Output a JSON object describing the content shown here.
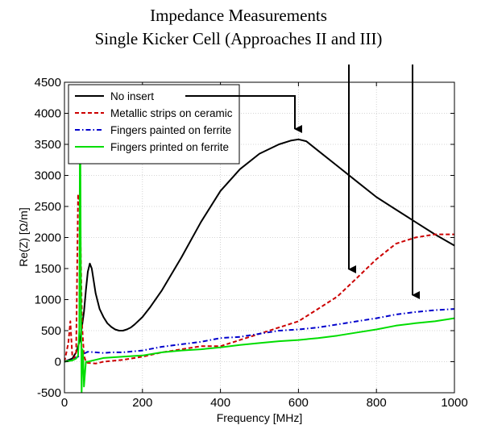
{
  "chart_data": {
    "type": "line",
    "title": "Impedance Measurements",
    "subtitle": "Single Kicker Cell (Approaches II and III)",
    "xlabel": "Frequency [MHz]",
    "ylabel": "Re(Z) [Ω/m]",
    "xlim": [
      0,
      1000
    ],
    "ylim": [
      -500,
      4500
    ],
    "xticks": [
      0,
      200,
      400,
      600,
      800,
      1000
    ],
    "yticks": [
      -500,
      0,
      500,
      1000,
      1500,
      2000,
      2500,
      3000,
      3500,
      4000,
      4500
    ],
    "grid": true,
    "legend_position": "top-left",
    "series": [
      {
        "name": "No insert",
        "color": "#000000",
        "style": "solid",
        "x": [
          0,
          20,
          30,
          40,
          50,
          55,
          60,
          65,
          70,
          75,
          80,
          90,
          100,
          110,
          120,
          130,
          140,
          150,
          160,
          170,
          180,
          200,
          220,
          250,
          300,
          350,
          400,
          450,
          500,
          550,
          580,
          600,
          620,
          650,
          700,
          750,
          800,
          850,
          900,
          950,
          1000
        ],
        "y": [
          0,
          50,
          150,
          350,
          800,
          1150,
          1450,
          1580,
          1500,
          1300,
          1100,
          850,
          720,
          620,
          560,
          520,
          500,
          500,
          520,
          550,
          600,
          720,
          880,
          1150,
          1680,
          2250,
          2750,
          3100,
          3350,
          3500,
          3560,
          3580,
          3550,
          3400,
          3150,
          2900,
          2650,
          2450,
          2250,
          2050,
          1870
        ]
      },
      {
        "name": "Metallic strips on ceramic",
        "color": "#cc0000",
        "style": "dashed",
        "x": [
          0,
          10,
          15,
          20,
          25,
          30,
          35,
          40,
          45,
          50,
          55,
          60,
          80,
          100,
          150,
          200,
          250,
          300,
          350,
          400,
          450,
          500,
          550,
          600,
          650,
          700,
          750,
          800,
          850,
          900,
          950,
          1000
        ],
        "y": [
          0,
          300,
          650,
          100,
          50,
          150,
          2700,
          2400,
          600,
          100,
          0,
          -20,
          -30,
          0,
          30,
          80,
          150,
          200,
          250,
          250,
          350,
          450,
          550,
          650,
          850,
          1050,
          1350,
          1650,
          1900,
          2000,
          2050,
          2050
        ]
      },
      {
        "name": "Fingers painted on ferrite",
        "color": "#0000cc",
        "style": "dashdot",
        "x": [
          0,
          20,
          40,
          60,
          80,
          100,
          120,
          150,
          200,
          250,
          300,
          350,
          400,
          450,
          500,
          550,
          600,
          650,
          700,
          750,
          800,
          850,
          900,
          950,
          1000
        ],
        "y": [
          0,
          30,
          100,
          160,
          150,
          140,
          150,
          150,
          180,
          240,
          280,
          320,
          380,
          400,
          450,
          500,
          520,
          550,
          600,
          650,
          700,
          760,
          800,
          830,
          850
        ]
      },
      {
        "name": "Fingers printed on ferrite",
        "color": "#00dd00",
        "style": "solid",
        "x": [
          0,
          20,
          30,
          35,
          38,
          40,
          42,
          44,
          46,
          48,
          50,
          55,
          60,
          80,
          100,
          150,
          200,
          250,
          300,
          350,
          400,
          450,
          500,
          550,
          600,
          650,
          700,
          750,
          800,
          850,
          900,
          950,
          1000
        ],
        "y": [
          0,
          20,
          50,
          100,
          500,
          4400,
          1500,
          -500,
          200,
          100,
          -400,
          0,
          0,
          30,
          60,
          80,
          100,
          150,
          180,
          200,
          230,
          270,
          300,
          330,
          350,
          380,
          420,
          470,
          520,
          580,
          620,
          650,
          700
        ]
      }
    ]
  }
}
